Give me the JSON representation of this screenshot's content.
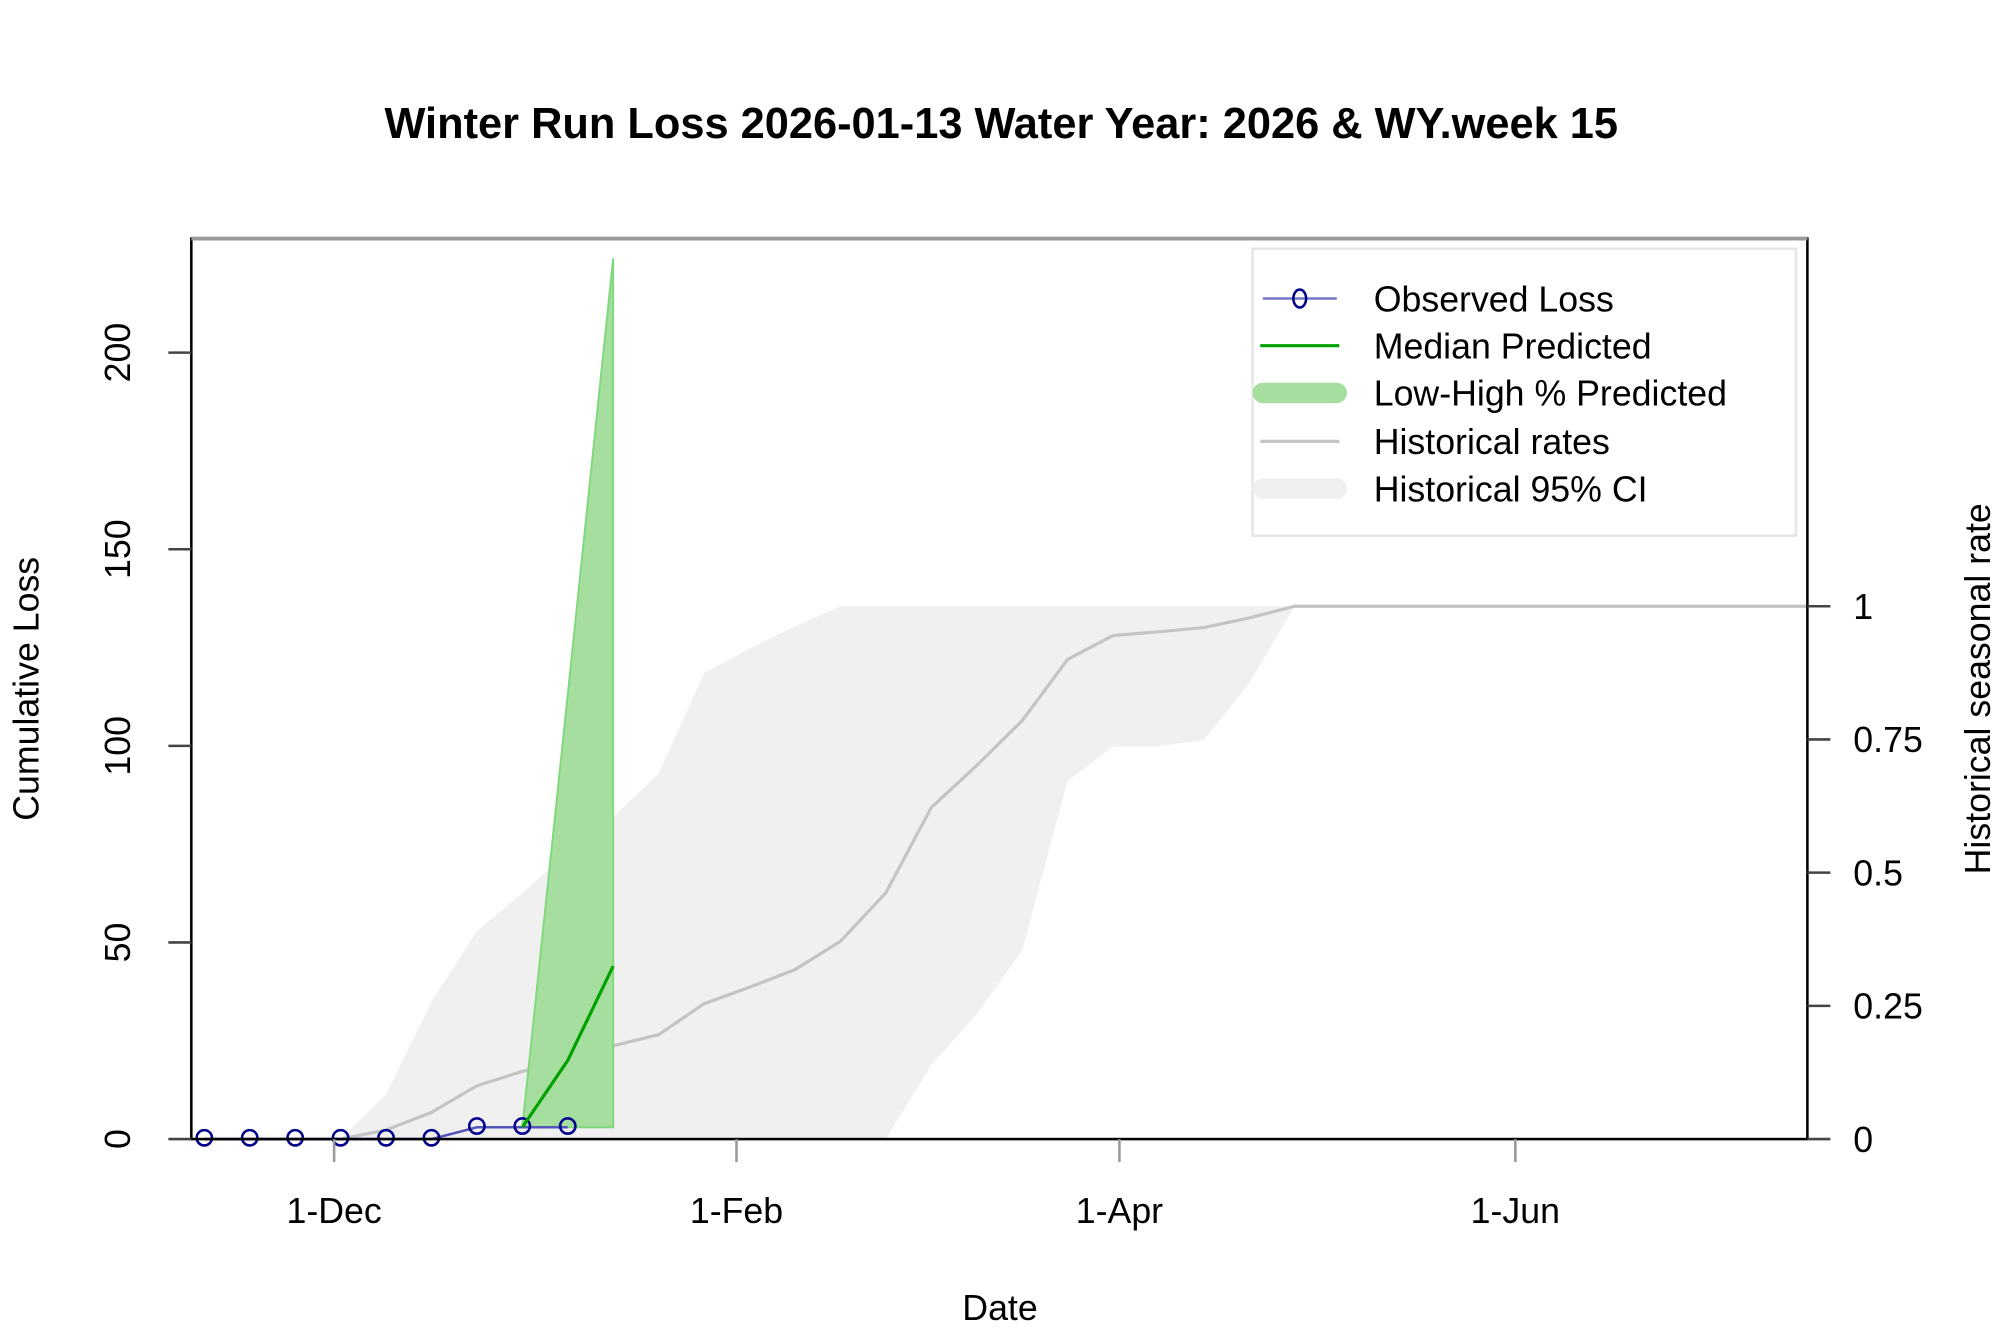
{
  "chart_data": {
    "type": "line",
    "title": "Winter Run Loss 2026-01-13  Water Year: 2026 & WY.week 15",
    "xlabel": "Date",
    "ylabel": "Cumulative Loss",
    "y2label": "Historical seasonal rate",
    "xlim": [
      "2025-11-09",
      "2026-07-16"
    ],
    "ylim": [
      0,
      229
    ],
    "y2lim": [
      0,
      1.69
    ],
    "x_ticks": [
      {
        "date": "2025-12-01",
        "label": "1-Dec"
      },
      {
        "date": "2026-02-01",
        "label": "1-Feb"
      },
      {
        "date": "2026-04-01",
        "label": "1-Apr"
      },
      {
        "date": "2026-06-01",
        "label": "1-Jun"
      }
    ],
    "y_ticks": [
      {
        "value": 0,
        "label": "0"
      },
      {
        "value": 50,
        "label": "50"
      },
      {
        "value": 100,
        "label": "100"
      },
      {
        "value": 150,
        "label": "150"
      },
      {
        "value": 200,
        "label": "200"
      }
    ],
    "y2_ticks": [
      {
        "value": 0,
        "label": "0"
      },
      {
        "value": 0.25,
        "label": "0.25"
      },
      {
        "value": 0.5,
        "label": "0.5"
      },
      {
        "value": 0.75,
        "label": "0.75"
      },
      {
        "value": 1,
        "label": "1"
      }
    ],
    "grid": false,
    "legend_placement": "top-right",
    "colors": {
      "observed": "#00008b",
      "median": "#00a000",
      "predicted_band": "#a6dea0",
      "historical_line": "#c0c0c0",
      "historical_band": "#f0f0f0"
    },
    "observed": {
      "name": "Observed Loss",
      "x": [
        "2025-11-11",
        "2025-11-18",
        "2025-11-25",
        "2025-12-02",
        "2025-12-09",
        "2025-12-16",
        "2025-12-23",
        "2025-12-30",
        "2026-01-06"
      ],
      "y": [
        0,
        0,
        0,
        0,
        0,
        0,
        3,
        3,
        3
      ]
    },
    "median_predicted": {
      "name": "Median Predicted",
      "x": [
        "2025-12-30",
        "2026-01-06",
        "2026-01-13"
      ],
      "y": [
        3,
        20,
        44
      ]
    },
    "predicted_range": {
      "name": "Low-High % Predicted",
      "x": [
        "2025-12-30",
        "2026-01-06",
        "2026-01-13"
      ],
      "low": [
        3,
        3,
        3
      ],
      "high": [
        3,
        113,
        224
      ]
    },
    "historical_rates": {
      "name": "Historical rates",
      "axis": "right",
      "x": [
        "2025-11-11",
        "2025-11-18",
        "2025-11-25",
        "2025-12-02",
        "2025-12-09",
        "2025-12-16",
        "2025-12-23",
        "2025-12-30",
        "2026-01-06",
        "2026-01-13",
        "2026-01-20",
        "2026-01-27",
        "2026-02-03",
        "2026-02-10",
        "2026-02-17",
        "2026-02-24",
        "2026-03-03",
        "2026-03-10",
        "2026-03-17",
        "2026-03-24",
        "2026-03-31",
        "2026-04-07",
        "2026-04-14",
        "2026-04-21",
        "2026-04-28",
        "2026-07-16"
      ],
      "y": [
        0,
        0,
        0,
        0,
        0.017,
        0.05,
        0.1,
        0.127,
        0.15,
        0.175,
        0.196,
        0.254,
        0.285,
        0.318,
        0.371,
        0.462,
        0.622,
        0.701,
        0.785,
        0.9,
        0.945,
        0.952,
        0.96,
        0.978,
        1.0,
        1.0
      ]
    },
    "historical_ci": {
      "name": "Historical 95% CI",
      "axis": "right",
      "x": [
        "2025-11-25",
        "2025-12-02",
        "2025-12-09",
        "2025-12-16",
        "2025-12-23",
        "2025-12-30",
        "2026-01-06",
        "2026-01-13",
        "2026-01-20",
        "2026-01-27",
        "2026-02-03",
        "2026-02-10",
        "2026-02-17",
        "2026-02-24",
        "2026-03-03",
        "2026-03-10",
        "2026-03-17",
        "2026-03-24",
        "2026-03-31",
        "2026-04-07",
        "2026-04-14",
        "2026-04-21",
        "2026-04-28",
        "2026-07-16"
      ],
      "low": [
        0,
        0,
        0,
        0,
        0,
        0,
        0,
        0,
        0,
        0,
        0,
        0,
        0,
        0,
        0.139,
        0.234,
        0.354,
        0.672,
        0.737,
        0.737,
        0.749,
        0.856,
        1.0,
        1.0
      ],
      "high": [
        0,
        0,
        0.084,
        0.258,
        0.39,
        0.462,
        0.538,
        0.605,
        0.686,
        0.875,
        0.92,
        0.962,
        1.0,
        1.0,
        1.0,
        1.0,
        1.0,
        1.0,
        1.0,
        1.0,
        1.0,
        1.0,
        1.0,
        1.0
      ]
    },
    "legend": [
      "Observed Loss",
      "Median Predicted",
      "Low-High % Predicted",
      "Historical rates",
      "Historical 95% CI"
    ]
  }
}
